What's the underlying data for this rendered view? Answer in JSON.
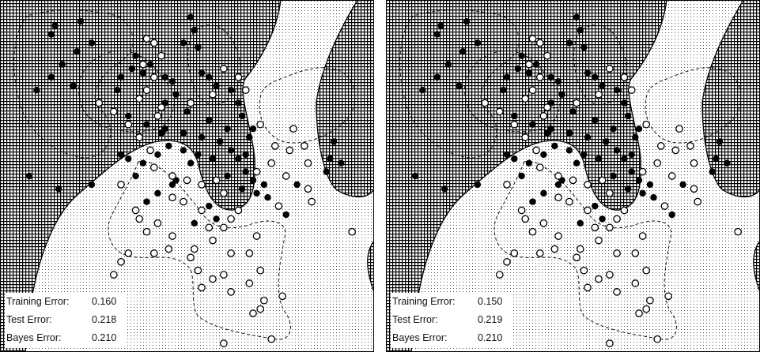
{
  "colors": {
    "class_filled": "#000000",
    "class_open": "#000000",
    "region_filled_hatch": "#000000",
    "region_dotted": "#555555",
    "background": "#ffffff"
  },
  "chart_data": [
    {
      "type": "scatter",
      "panel": "left",
      "title": "",
      "grid": false,
      "series": [
        {
          "marker": "filled-circle",
          "points": [
            [
              2.3,
              2.9
            ],
            [
              2.35,
              2.75
            ],
            [
              2.4,
              2.55
            ],
            [
              2.2,
              2.6
            ],
            [
              2.45,
              2.25
            ],
            [
              2.05,
              2.15
            ],
            [
              2.55,
              2.2
            ],
            [
              1.75,
              2.35
            ],
            [
              1.55,
              2.45
            ],
            [
              1.95,
              2.2
            ],
            [
              1.65,
              2.25
            ],
            [
              1.5,
              2.3
            ],
            [
              1.35,
              2.2
            ],
            [
              1.3,
              2.05
            ],
            [
              1.45,
              1.75
            ],
            [
              1.7,
              1.65
            ],
            [
              1.9,
              1.55
            ],
            [
              2.2,
              1.55
            ],
            [
              2.45,
              1.5
            ],
            [
              2.55,
              1.7
            ],
            [
              2.25,
              1.8
            ],
            [
              2.1,
              2.0
            ],
            [
              2.85,
              2.05
            ],
            [
              2.95,
              1.9
            ],
            [
              3.0,
              1.75
            ],
            [
              2.8,
              1.6
            ],
            [
              3.1,
              1.5
            ],
            [
              2.7,
              1.45
            ],
            [
              2.85,
              1.35
            ],
            [
              2.95,
              1.25
            ],
            [
              3.05,
              1.1
            ],
            [
              2.8,
              1.05
            ],
            [
              3.15,
              1.0
            ],
            [
              3.3,
              0.95
            ],
            [
              3.2,
              0.85
            ],
            [
              3.35,
              0.8
            ],
            [
              3.0,
              0.9
            ],
            [
              2.6,
              1.25
            ],
            [
              2.4,
              1.3
            ],
            [
              2.2,
              1.35
            ],
            [
              2.0,
              1.4
            ],
            [
              1.85,
              1.3
            ],
            [
              1.65,
              1.2
            ],
            [
              1.45,
              1.25
            ],
            [
              1.35,
              1.3
            ],
            [
              1.95,
              1.6
            ],
            [
              2.3,
              1.2
            ],
            [
              2.1,
              1.0
            ],
            [
              2.55,
              0.7
            ],
            [
              2.65,
              0.55
            ],
            [
              2.05,
              0.95
            ],
            [
              3.6,
              0.6
            ],
            [
              3.75,
              0.95
            ],
            [
              4.15,
              1.1
            ],
            [
              4.2,
              1.25
            ],
            [
              4.25,
              1.45
            ],
            [
              4.35,
              1.2
            ],
            [
              0.1,
              1.05
            ],
            [
              0.5,
              0.9
            ],
            [
              0.95,
              0.95
            ],
            [
              0.7,
              2.1
            ],
            [
              0.55,
              2.35
            ],
            [
              0.4,
              2.7
            ],
            [
              0.45,
              2.8
            ],
            [
              0.8,
              2.85
            ],
            [
              0.95,
              2.6
            ],
            [
              0.75,
              2.5
            ],
            [
              0.2,
              2.05
            ],
            [
              0.4,
              2.2
            ],
            [
              1.95,
              1.9
            ],
            [
              2.65,
              2.1
            ],
            [
              3.15,
              1.6
            ],
            [
              3.05,
              1.3
            ],
            [
              1.7,
              0.75
            ],
            [
              1.85,
              0.85
            ],
            [
              2.35,
              0.5
            ],
            [
              1.55,
              1.05
            ]
          ]
        },
        {
          "marker": "open-circle",
          "points": [
            [
              1.7,
              2.65
            ],
            [
              1.8,
              2.6
            ],
            [
              1.9,
              2.45
            ],
            [
              1.8,
              2.2
            ],
            [
              1.7,
              2.05
            ],
            [
              1.6,
              1.95
            ],
            [
              1.45,
              1.65
            ],
            [
              1.25,
              1.8
            ],
            [
              1.05,
              1.9
            ],
            [
              1.85,
              1.75
            ],
            [
              1.6,
              1.5
            ],
            [
              1.75,
              1.35
            ],
            [
              1.8,
              1.15
            ],
            [
              2.05,
              1.05
            ],
            [
              2.25,
              1.0
            ],
            [
              2.45,
              0.95
            ],
            [
              2.65,
              1.0
            ],
            [
              2.75,
              0.85
            ],
            [
              2.95,
              0.65
            ],
            [
              2.05,
              0.8
            ],
            [
              2.2,
              0.75
            ],
            [
              2.45,
              0.65
            ],
            [
              2.55,
              0.45
            ],
            [
              2.75,
              0.45
            ],
            [
              2.6,
              0.3
            ],
            [
              2.85,
              0.15
            ],
            [
              2.6,
              2.0
            ],
            [
              2.75,
              2.3
            ],
            [
              2.95,
              2.2
            ],
            [
              3.05,
              2.05
            ],
            [
              3.25,
              1.65
            ],
            [
              3.45,
              1.4
            ],
            [
              3.65,
              1.35
            ],
            [
              3.7,
              1.6
            ],
            [
              3.85,
              1.4
            ],
            [
              3.9,
              1.2
            ],
            [
              3.4,
              1.2
            ],
            [
              3.2,
              1.1
            ],
            [
              3.6,
              1.05
            ],
            [
              3.5,
              0.7
            ],
            [
              3.9,
              0.9
            ],
            [
              1.6,
              0.55
            ],
            [
              1.85,
              0.5
            ],
            [
              2.05,
              0.35
            ],
            [
              1.35,
              0.95
            ],
            [
              1.55,
              0.65
            ],
            [
              1.9,
              1.85
            ],
            [
              1.7,
              0.4
            ],
            [
              2.3,
              0.1
            ],
            [
              2.4,
              -0.05
            ],
            [
              2.6,
              -0.15
            ],
            [
              2.75,
              -0.1
            ],
            [
              2.45,
              -0.25
            ],
            [
              2.85,
              -0.3
            ],
            [
              3.1,
              -0.2
            ],
            [
              3.25,
              -0.05
            ],
            [
              3.1,
              0.15
            ],
            [
              3.2,
              0.35
            ],
            [
              3.25,
              -0.5
            ],
            [
              3.3,
              -0.4
            ],
            [
              3.15,
              -0.55
            ],
            [
              2.75,
              -0.9
            ],
            [
              3.4,
              -0.85
            ],
            [
              1.45,
              0.15
            ],
            [
              1.35,
              0.05
            ],
            [
              1.25,
              -0.1
            ],
            [
              1.8,
              0.15
            ],
            [
              2.0,
              0.2
            ],
            [
              2.35,
              0.2
            ],
            [
              3.55,
              -0.35
            ],
            [
              2.85,
              0.55
            ],
            [
              3.95,
              0.75
            ],
            [
              4.5,
              0.4
            ],
            [
              1.65,
              2.35
            ],
            [
              2.3,
              1.9
            ]
          ]
        }
      ],
      "annotations": [
        {
          "label": "Training Error:",
          "value": "0.160"
        },
        {
          "label": "Test Error:",
          "value": "0.218"
        },
        {
          "label": "Bayes Error:",
          "value": "0.210"
        }
      ]
    },
    {
      "type": "scatter",
      "panel": "right",
      "title": "",
      "grid": false,
      "same_points_as": "left",
      "annotations": [
        {
          "label": "Training Error:",
          "value": "0.150"
        },
        {
          "label": "Test Error:",
          "value": "0.219"
        },
        {
          "label": "Bayes Error:",
          "value": "0.210"
        }
      ]
    }
  ]
}
